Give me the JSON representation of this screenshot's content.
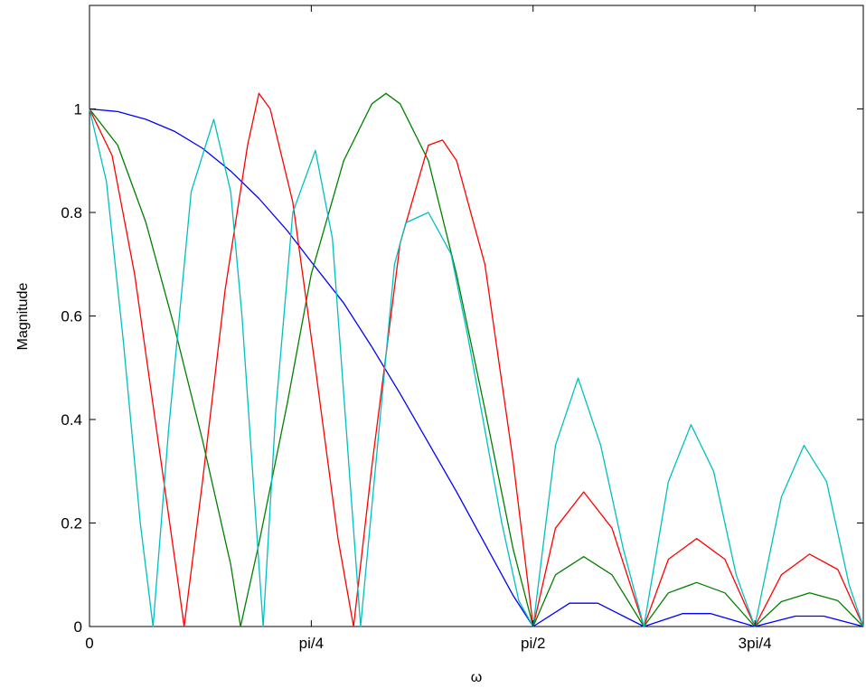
{
  "chart_data": {
    "type": "line",
    "title": "",
    "xlabel": "ω",
    "ylabel": "Magnitude",
    "xlim": [
      0,
      2.74
    ],
    "ylim": [
      0,
      1.2
    ],
    "grid": false,
    "legend": "none",
    "x_ticks": [
      {
        "value": 0,
        "label": "0"
      },
      {
        "value": 0.7854,
        "label": "pi/4"
      },
      {
        "value": 1.5708,
        "label": "pi/2"
      },
      {
        "value": 2.3562,
        "label": "3pi/4"
      }
    ],
    "y_ticks": [
      {
        "value": 0,
        "label": "0"
      },
      {
        "value": 0.2,
        "label": "0.2"
      },
      {
        "value": 0.4,
        "label": "0.4"
      },
      {
        "value": 0.6,
        "label": "0.6"
      },
      {
        "value": 0.8,
        "label": "0.8"
      },
      {
        "value": 1,
        "label": "1"
      }
    ],
    "series": [
      {
        "color": "#0000ff",
        "x": [
          0,
          0.1,
          0.2,
          0.3,
          0.4,
          0.5,
          0.6,
          0.7,
          0.785,
          0.9,
          1.0,
          1.1,
          1.2,
          1.3,
          1.4,
          1.5,
          1.571,
          1.7,
          1.8,
          1.963,
          2.1,
          2.2,
          2.356,
          2.5,
          2.6,
          2.74
        ],
        "y": [
          1.0,
          0.995,
          0.98,
          0.957,
          0.924,
          0.88,
          0.827,
          0.765,
          0.705,
          0.625,
          0.54,
          0.45,
          0.355,
          0.26,
          0.16,
          0.06,
          0.0,
          0.045,
          0.045,
          0.0,
          0.025,
          0.025,
          0.0,
          0.02,
          0.02,
          0.0
        ]
      },
      {
        "color": "#008000",
        "x": [
          0,
          0.1,
          0.2,
          0.3,
          0.4,
          0.5,
          0.535,
          0.6,
          0.7,
          0.785,
          0.9,
          1.0,
          1.05,
          1.1,
          1.2,
          1.3,
          1.4,
          1.5,
          1.571,
          1.65,
          1.75,
          1.85,
          1.963,
          2.05,
          2.15,
          2.25,
          2.356,
          2.45,
          2.55,
          2.65,
          2.74
        ],
        "y": [
          1.0,
          0.93,
          0.78,
          0.58,
          0.36,
          0.12,
          0.0,
          0.16,
          0.43,
          0.68,
          0.9,
          1.01,
          1.03,
          1.01,
          0.9,
          0.68,
          0.42,
          0.15,
          0.0,
          0.1,
          0.135,
          0.1,
          0.0,
          0.065,
          0.085,
          0.065,
          0.0,
          0.048,
          0.065,
          0.05,
          0.0
        ]
      },
      {
        "color": "#ff0000",
        "x": [
          0,
          0.08,
          0.16,
          0.24,
          0.32,
          0.335,
          0.4,
          0.48,
          0.56,
          0.6,
          0.64,
          0.72,
          0.8,
          0.88,
          0.935,
          1.0,
          1.1,
          1.2,
          1.25,
          1.3,
          1.4,
          1.5,
          1.571,
          1.65,
          1.75,
          1.85,
          1.963,
          2.05,
          2.15,
          2.25,
          2.356,
          2.45,
          2.55,
          2.65,
          2.74
        ],
        "y": [
          1.0,
          0.91,
          0.68,
          0.37,
          0.06,
          0.0,
          0.28,
          0.65,
          0.93,
          1.03,
          1.0,
          0.82,
          0.5,
          0.17,
          0.0,
          0.31,
          0.74,
          0.93,
          0.94,
          0.9,
          0.7,
          0.32,
          0.0,
          0.19,
          0.26,
          0.19,
          0.0,
          0.13,
          0.17,
          0.13,
          0.0,
          0.1,
          0.14,
          0.11,
          0.0
        ],
        "comment_free": true
      },
      {
        "color": "#00c0c0",
        "x": [
          0,
          0.06,
          0.12,
          0.18,
          0.225,
          0.28,
          0.36,
          0.44,
          0.5,
          0.54,
          0.615,
          0.66,
          0.72,
          0.8,
          0.86,
          0.9,
          0.96,
          1.02,
          1.08,
          1.12,
          1.2,
          1.28,
          1.34,
          1.4,
          1.46,
          1.52,
          1.571,
          1.65,
          1.73,
          1.81,
          1.89,
          1.963,
          2.05,
          2.13,
          2.21,
          2.29,
          2.356,
          2.45,
          2.53,
          2.61,
          2.69,
          2.74
        ],
        "y": [
          1.0,
          0.86,
          0.55,
          0.2,
          0.0,
          0.38,
          0.84,
          0.98,
          0.84,
          0.6,
          0.0,
          0.42,
          0.8,
          0.92,
          0.75,
          0.45,
          0.0,
          0.35,
          0.7,
          0.78,
          0.8,
          0.72,
          0.56,
          0.38,
          0.2,
          0.05,
          0.0,
          0.35,
          0.48,
          0.35,
          0.15,
          0.0,
          0.28,
          0.39,
          0.3,
          0.1,
          0.0,
          0.25,
          0.35,
          0.28,
          0.08,
          0.0
        ]
      }
    ]
  }
}
